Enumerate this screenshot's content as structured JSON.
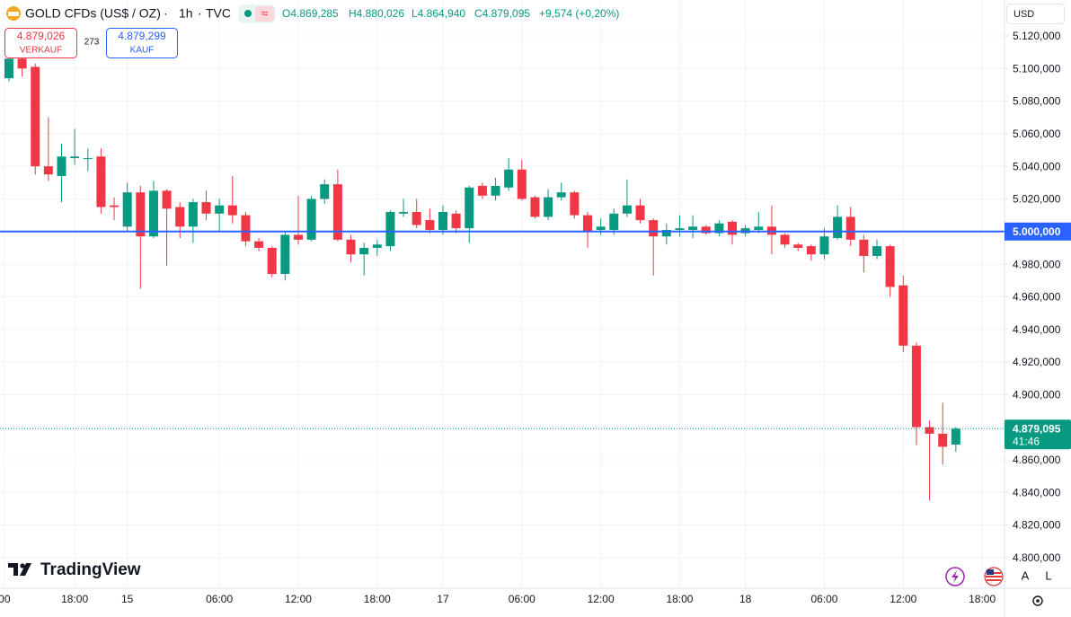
{
  "chart_data": {
    "type": "candlestick",
    "symbol": "GOLD CFDs (US$ / OZ)",
    "interval": "1h",
    "source": "TVC",
    "header_ohlc": {
      "open": "O4.869,285",
      "high": "H4.880,026",
      "low": "L4.864,940",
      "close": "C4.879,095",
      "change": "+9,574 (+0,20%)"
    },
    "sell": {
      "price": "4.879,026",
      "label": "VERKAUF"
    },
    "spread": "273",
    "buy": {
      "price": "4.879,299",
      "label": "KAUF"
    },
    "currency": "USD",
    "brand": "TradingView",
    "scale_buttons": [
      "A",
      "L"
    ],
    "up_color": "#089981",
    "down_color": "#f23645",
    "open": [
      5094,
      5106,
      5101,
      5040,
      5034,
      5045,
      5045,
      5046,
      5016,
      5003,
      5024,
      4997,
      5025,
      5015,
      5003,
      5018,
      5011,
      5016,
      5010,
      4994,
      4990,
      4974,
      4998,
      4995,
      5020,
      5029,
      4995,
      4986,
      4990,
      4991,
      5011,
      5012,
      5007,
      5001,
      5011,
      5002,
      5028,
      5022,
      5027,
      5038,
      5021,
      5009,
      5021,
      5024,
      5010,
      5001,
      5001,
      5011,
      5016,
      5007,
      4997,
      5001,
      5001,
      5003,
      4999,
      5006,
      4999,
      5001,
      5003,
      4998,
      4992,
      4991,
      4986,
      4996,
      5009,
      4995,
      4985,
      4991,
      4967,
      4930,
      4880,
      4876,
      4869.285
    ],
    "high": [
      5110,
      5110,
      5103,
      5070,
      5054,
      5063,
      5051,
      5051,
      5021,
      5030,
      5028,
      5031,
      5026,
      5018,
      5020,
      5025,
      5020,
      5034,
      5012,
      4996,
      4991,
      5000,
      5022,
      5022,
      5032,
      5038,
      4998,
      4993,
      4995,
      5013,
      5020,
      5020,
      5014,
      5016,
      5013,
      5028,
      5030,
      5033,
      5045,
      5044,
      5022,
      5026,
      5030,
      5025,
      5012,
      5008,
      5014,
      5032,
      5020,
      5008,
      5005,
      5010,
      5010,
      5004,
      5007,
      5007,
      5004,
      5012,
      5016,
      4999,
      4993,
      4992,
      5002,
      5016,
      5015,
      4998,
      4995,
      4992,
      4973,
      4932,
      4884,
      4895,
      4880.026
    ],
    "low": [
      5092,
      5095,
      5035,
      5031,
      5018,
      5041,
      5037,
      5011,
      5007,
      5000,
      4965,
      4996,
      4979,
      4996,
      4993,
      5007,
      5000,
      5005,
      4991,
      4988,
      4972,
      4970,
      4992,
      4994,
      5017,
      4994,
      4981,
      4973,
      4985,
      4988,
      5009,
      5002,
      4999,
      4998,
      4999,
      4993,
      5020,
      5019,
      5025,
      5019,
      5008,
      5007,
      5019,
      5008,
      4990,
      4998,
      4998,
      5009,
      5005,
      4973,
      4992,
      4997,
      4996,
      4998,
      4997,
      4992,
      4997,
      4999,
      4986,
      4990,
      4988,
      4982,
      4983,
      4995,
      4991,
      4975,
      4983,
      4960,
      4926,
      4869,
      4835,
      4857,
      4864.94
    ],
    "close": [
      5106,
      5100,
      5040,
      5035,
      5046,
      5046,
      5045,
      5015,
      5015,
      5024,
      4997,
      5025,
      5014,
      5003,
      5018,
      5011,
      5016,
      5010,
      4994,
      4990,
      4974,
      4998,
      4995,
      5020,
      5029,
      4995,
      4986,
      4990,
      4992,
      5012,
      5012,
      5004,
      5001,
      5012,
      5002,
      5027,
      5022,
      5028,
      5038,
      5020,
      5009,
      5021,
      5024,
      5010,
      5000,
      5003,
      5011,
      5016,
      5007,
      4997,
      5001,
      5002,
      5003,
      4999,
      5005,
      4998,
      5002,
      5003,
      4998,
      4992,
      4990,
      4986,
      4997,
      5009,
      4995,
      4985,
      4991,
      4966,
      4930,
      4880,
      4876,
      4868,
      4879.095
    ],
    "xlim": [
      -0.68,
      75.7
    ],
    "xticks": [
      {
        "value": -0.35,
        "label": "00"
      },
      {
        "value": 5,
        "label": "18:00"
      },
      {
        "value": 9,
        "label": "15"
      },
      {
        "value": 16,
        "label": "06:00"
      },
      {
        "value": 22,
        "label": "12:00"
      },
      {
        "value": 28,
        "label": "18:00"
      },
      {
        "value": 33,
        "label": "17"
      },
      {
        "value": 39,
        "label": "06:00"
      },
      {
        "value": 45,
        "label": "12:00"
      },
      {
        "value": 51,
        "label": "18:00"
      },
      {
        "value": 56,
        "label": "18"
      },
      {
        "value": 62,
        "label": "06:00"
      },
      {
        "value": 68,
        "label": "12:00"
      },
      {
        "value": 74,
        "label": "18:00"
      }
    ],
    "ylim": [
      4781.2,
      5142.0
    ],
    "yticks": [
      {
        "value": 4800,
        "label": "4.800,000"
      },
      {
        "value": 4820,
        "label": "4.820,000"
      },
      {
        "value": 4840,
        "label": "4.840,000"
      },
      {
        "value": 4860,
        "label": "4.860,000"
      },
      {
        "value": 4880,
        "label": "4.880,000"
      },
      {
        "value": 4900,
        "label": "4.900,000"
      },
      {
        "value": 4920,
        "label": "4.920,000"
      },
      {
        "value": 4940,
        "label": "4.940,000"
      },
      {
        "value": 4960,
        "label": "4.960,000"
      },
      {
        "value": 4980,
        "label": "4.980,000"
      },
      {
        "value": 5000,
        "label": "5.000,000"
      },
      {
        "value": 5020,
        "label": "5.020,000"
      },
      {
        "value": 5040,
        "label": "5.040,000"
      },
      {
        "value": 5060,
        "label": "5.060,000"
      },
      {
        "value": 5080,
        "label": "5.080,000"
      },
      {
        "value": 5100,
        "label": "5.100,000"
      },
      {
        "value": 5120,
        "label": "5.120,000"
      }
    ],
    "grid": true,
    "hline": {
      "value": 5000,
      "label": "5.000,000",
      "color": "#2962ff"
    },
    "last_price": {
      "value": 4879.095,
      "label": "4.879,095",
      "countdown": "41:46"
    }
  }
}
